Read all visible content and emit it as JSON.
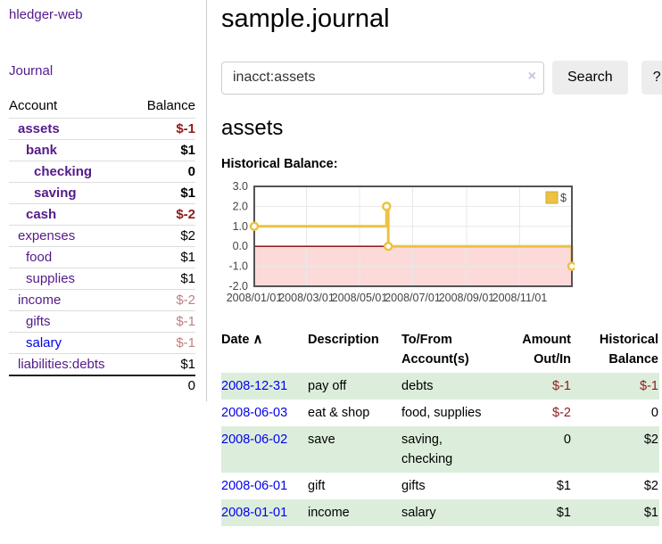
{
  "sidebar": {
    "app_title": "hledger-web",
    "journal_link": "Journal",
    "accounts": {
      "col_account": "Account",
      "col_balance": "Balance",
      "rows": [
        {
          "name": "assets",
          "balance": "$-1",
          "depth": 0,
          "in_view": true,
          "balance_style": "neg-strong",
          "link_color": "purple"
        },
        {
          "name": "bank",
          "balance": "$1",
          "depth": 1,
          "in_view": true,
          "balance_style": "normal",
          "link_color": "purple"
        },
        {
          "name": "checking",
          "balance": "0",
          "depth": 2,
          "in_view": true,
          "balance_style": "normal",
          "link_color": "purple"
        },
        {
          "name": "saving",
          "balance": "$1",
          "depth": 2,
          "in_view": true,
          "balance_style": "normal",
          "link_color": "purple"
        },
        {
          "name": "cash",
          "balance": "$-2",
          "depth": 1,
          "in_view": true,
          "balance_style": "neg-strong",
          "link_color": "purple"
        },
        {
          "name": "expenses",
          "balance": "$2",
          "depth": 0,
          "in_view": false,
          "balance_style": "normal",
          "link_color": "purple"
        },
        {
          "name": "food",
          "balance": "$1",
          "depth": 1,
          "in_view": false,
          "balance_style": "normal",
          "link_color": "purple"
        },
        {
          "name": "supplies",
          "balance": "$1",
          "depth": 1,
          "in_view": false,
          "balance_style": "normal",
          "link_color": "purple"
        },
        {
          "name": "income",
          "balance": "$-2",
          "depth": 0,
          "in_view": false,
          "balance_style": "neg-faded",
          "link_color": "purple"
        },
        {
          "name": "gifts",
          "balance": "$-1",
          "depth": 1,
          "in_view": false,
          "balance_style": "neg-faded",
          "link_color": "purple"
        },
        {
          "name": "salary",
          "balance": "$-1",
          "depth": 1,
          "in_view": false,
          "balance_style": "neg-faded",
          "link_color": "blue"
        },
        {
          "name": "liabilities:debts",
          "balance": "$1",
          "depth": 0,
          "in_view": false,
          "balance_style": "normal",
          "link_color": "purple"
        }
      ],
      "total": "0"
    }
  },
  "main": {
    "title": "sample.journal",
    "search": {
      "query": "inacct:assets",
      "clear_icon": "×",
      "button_label": "Search",
      "help_label": "?"
    },
    "account_heading": "assets",
    "chart_label": "Historical Balance:",
    "register": {
      "headers": {
        "date": "Date",
        "sort_icon": "∧",
        "description": "Description",
        "accounts": "To/From Account(s)",
        "amount": "Amount Out/In",
        "balance": "Historical Balance"
      },
      "rows": [
        {
          "date": "2008-12-31",
          "description": "pay off",
          "accounts": "debts",
          "amount": "$-1",
          "amount_neg": true,
          "balance": "$-1",
          "balance_neg": true
        },
        {
          "date": "2008-06-03",
          "description": "eat & shop",
          "accounts": "food, supplies",
          "amount": "$-2",
          "amount_neg": true,
          "balance": "0",
          "balance_neg": false
        },
        {
          "date": "2008-06-02",
          "description": "save",
          "accounts": "saving, checking",
          "amount": "0",
          "amount_neg": false,
          "balance": "$2",
          "balance_neg": false
        },
        {
          "date": "2008-06-01",
          "description": "gift",
          "accounts": "gifts",
          "amount": "$1",
          "amount_neg": false,
          "balance": "$2",
          "balance_neg": false
        },
        {
          "date": "2008-01-01",
          "description": "income",
          "accounts": "salary",
          "amount": "$1",
          "amount_neg": false,
          "balance": "$1",
          "balance_neg": false
        }
      ]
    }
  },
  "chart_data": {
    "type": "line",
    "step": true,
    "title": "Historical Balance",
    "series": [
      {
        "name": "$",
        "color": "#edc240",
        "points": [
          [
            "2008-01-01",
            1
          ],
          [
            "2008-06-01",
            2
          ],
          [
            "2008-06-03",
            0
          ],
          [
            "2008-12-31",
            -1
          ]
        ]
      }
    ],
    "xlim": [
      "2008-01-01",
      "2008-12-31"
    ],
    "ylim": [
      -2,
      3
    ],
    "y_ticks": [
      3.0,
      2.0,
      1.0,
      0.0,
      -1.0,
      -2.0
    ],
    "x_ticks": [
      {
        "label": "2008/01/01",
        "date": "2008-01-01"
      },
      {
        "label": "2008/03/01",
        "date": "2008-03-01"
      },
      {
        "label": "2008/05/01",
        "date": "2008-05-01"
      },
      {
        "label": "2008/07/01",
        "date": "2008-07-01"
      },
      {
        "label": "2008/09/01",
        "date": "2008-09-01"
      },
      {
        "label": "2008/11/01",
        "date": "2008-11-01"
      }
    ],
    "grid": true,
    "grid_color": "#e8e8e8",
    "border_color": "#545454",
    "negative_region_color": "#fcdada",
    "zero_line_color": "#8b0000",
    "legend": {
      "label": "$",
      "position": "top-right"
    }
  }
}
